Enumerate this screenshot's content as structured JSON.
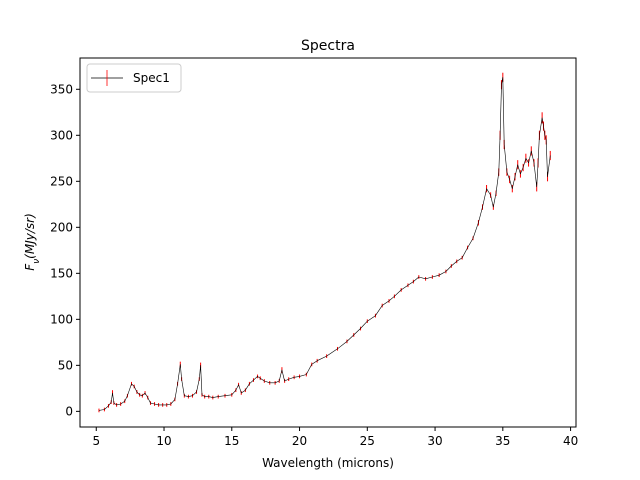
{
  "chart_data": {
    "type": "line",
    "title": "Spectra",
    "xlabel": "Wavelength (microns)",
    "ylabel": "F_ν(MJy/sr)",
    "ylabel_main": "F",
    "ylabel_sub": "ν",
    "ylabel_rest": "(MJy/sr)",
    "xlim": [
      3.8,
      40.4
    ],
    "ylim": [
      -17,
      384
    ],
    "xticks": [
      5,
      10,
      15,
      20,
      25,
      30,
      35,
      40
    ],
    "yticks": [
      0,
      50,
      100,
      150,
      200,
      250,
      300,
      350
    ],
    "legend": {
      "placement": "top-left"
    },
    "line_color": "#000000",
    "error_color": "#ff0000",
    "series": [
      {
        "name": "Spec1",
        "x": [
          5.2,
          5.6,
          5.9,
          6.1,
          6.2,
          6.3,
          6.5,
          6.8,
          7.1,
          7.3,
          7.6,
          7.8,
          8.0,
          8.2,
          8.4,
          8.6,
          8.8,
          9.0,
          9.3,
          9.6,
          9.9,
          10.2,
          10.5,
          10.8,
          11.0,
          11.2,
          11.3,
          11.5,
          11.8,
          12.1,
          12.4,
          12.6,
          12.7,
          12.8,
          13.0,
          13.3,
          13.6,
          14.0,
          14.5,
          15.0,
          15.3,
          15.5,
          15.7,
          16.0,
          16.3,
          16.6,
          16.9,
          17.1,
          17.4,
          17.8,
          18.2,
          18.5,
          18.7,
          18.9,
          19.2,
          19.6,
          20.0,
          20.5,
          20.9,
          21.3,
          22.0,
          22.8,
          23.5,
          24.0,
          24.5,
          25.0,
          25.6,
          26.1,
          26.6,
          27.0,
          27.5,
          28.0,
          28.4,
          28.8,
          29.3,
          29.8,
          30.3,
          30.8,
          31.2,
          31.6,
          32.0,
          32.4,
          32.8,
          33.2,
          33.5,
          33.8,
          34.1,
          34.3,
          34.5,
          34.7,
          34.8,
          34.9,
          35.0,
          35.1,
          35.3,
          35.5,
          35.7,
          35.9,
          36.1,
          36.3,
          36.5,
          36.7,
          36.9,
          37.1,
          37.3,
          37.5,
          37.6,
          37.7,
          37.9,
          38.0,
          38.1,
          38.2,
          38.3,
          38.5
        ],
        "y": [
          1,
          2,
          6,
          10,
          20,
          9,
          7,
          8,
          11,
          17,
          30,
          27,
          21,
          18,
          17,
          20,
          15,
          9,
          8,
          7,
          7,
          7,
          8,
          13,
          30,
          51,
          35,
          17,
          16,
          17,
          21,
          35,
          50,
          18,
          16,
          16,
          15,
          16,
          17,
          18,
          23,
          29,
          20,
          23,
          30,
          34,
          38,
          36,
          33,
          31,
          31,
          33,
          45,
          33,
          35,
          37,
          38,
          40,
          51,
          55,
          60,
          68,
          76,
          83,
          90,
          98,
          104,
          115,
          120,
          125,
          132,
          137,
          141,
          146,
          144,
          146,
          148,
          152,
          158,
          163,
          167,
          178,
          188,
          205,
          222,
          242,
          235,
          222,
          237,
          260,
          300,
          355,
          363,
          290,
          260,
          252,
          242,
          255,
          268,
          258,
          265,
          275,
          270,
          283,
          270,
          244,
          270,
          300,
          319,
          310,
          300,
          295,
          255,
          278
        ],
        "err": [
          2,
          2,
          2,
          2,
          3,
          2,
          2,
          2,
          2,
          2,
          2,
          2,
          2,
          2,
          2,
          2,
          2,
          2,
          2,
          2,
          2,
          2,
          2,
          2,
          2,
          3,
          2,
          2,
          2,
          2,
          2,
          2,
          3,
          2,
          2,
          2,
          2,
          2,
          2,
          2,
          2,
          2,
          2,
          2,
          2,
          2,
          2,
          2,
          2,
          2,
          2,
          2,
          3,
          2,
          2,
          2,
          2,
          2,
          2,
          2,
          2,
          2,
          2,
          2,
          2,
          2,
          2,
          2,
          2,
          2,
          2,
          2,
          2,
          2,
          2,
          2,
          2,
          2,
          2,
          2,
          2,
          2,
          2,
          3,
          3,
          4,
          3,
          3,
          3,
          4,
          5,
          5,
          5,
          5,
          4,
          4,
          4,
          4,
          5,
          4,
          4,
          5,
          4,
          5,
          4,
          5,
          5,
          5,
          6,
          5,
          5,
          5,
          5,
          5
        ]
      }
    ]
  }
}
